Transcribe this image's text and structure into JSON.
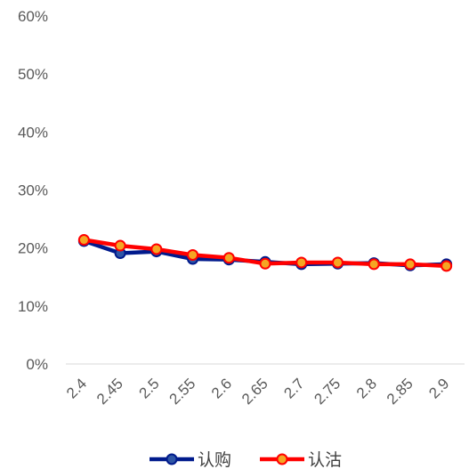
{
  "chart_data": {
    "type": "line",
    "categories": [
      "2.4",
      "2.45",
      "2.5",
      "2.55",
      "2.6",
      "2.65",
      "2.7",
      "2.75",
      "2.8",
      "2.85",
      "2.9"
    ],
    "series": [
      {
        "name": "认购",
        "color": "#001a8c",
        "marker_color": "#2f56a6",
        "values": [
          21.2,
          19.1,
          19.4,
          18.1,
          18.0,
          17.6,
          17.2,
          17.3,
          17.4,
          17.0,
          17.2
        ]
      },
      {
        "name": "认沽",
        "color": "#ff0000",
        "marker_color": "#f5a623",
        "values": [
          21.4,
          20.4,
          19.8,
          18.8,
          18.3,
          17.3,
          17.5,
          17.5,
          17.2,
          17.2,
          16.9
        ]
      }
    ],
    "y_ticks": [
      "0%",
      "10%",
      "20%",
      "30%",
      "40%",
      "50%",
      "60%"
    ],
    "ylim": [
      0,
      60
    ],
    "y_unit": "%",
    "grid": false,
    "legend_position": "bottom",
    "title": "",
    "xlabel": "",
    "ylabel": ""
  }
}
